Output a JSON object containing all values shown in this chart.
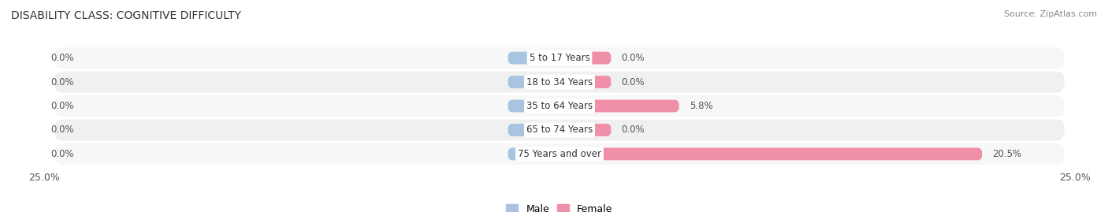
{
  "title": "DISABILITY CLASS: COGNITIVE DIFFICULTY",
  "source": "Source: ZipAtlas.com",
  "categories": [
    "5 to 17 Years",
    "18 to 34 Years",
    "35 to 64 Years",
    "65 to 74 Years",
    "75 Years and over"
  ],
  "male_values": [
    0.0,
    0.0,
    0.0,
    0.0,
    0.0
  ],
  "female_values": [
    0.0,
    0.0,
    5.8,
    0.0,
    20.5
  ],
  "male_labels": [
    "0.0%",
    "0.0%",
    "0.0%",
    "0.0%",
    "0.0%"
  ],
  "female_labels": [
    "0.0%",
    "0.0%",
    "5.8%",
    "0.0%",
    "20.5%"
  ],
  "xlim": 25.0,
  "male_color": "#a8c4e0",
  "female_color": "#f090a8",
  "row_bg_color": "#f5f5f5",
  "min_bar_width": 2.5,
  "title_fontsize": 10,
  "label_fontsize": 8.5,
  "axis_label_fontsize": 9,
  "legend_fontsize": 9,
  "background_color": "#ffffff"
}
